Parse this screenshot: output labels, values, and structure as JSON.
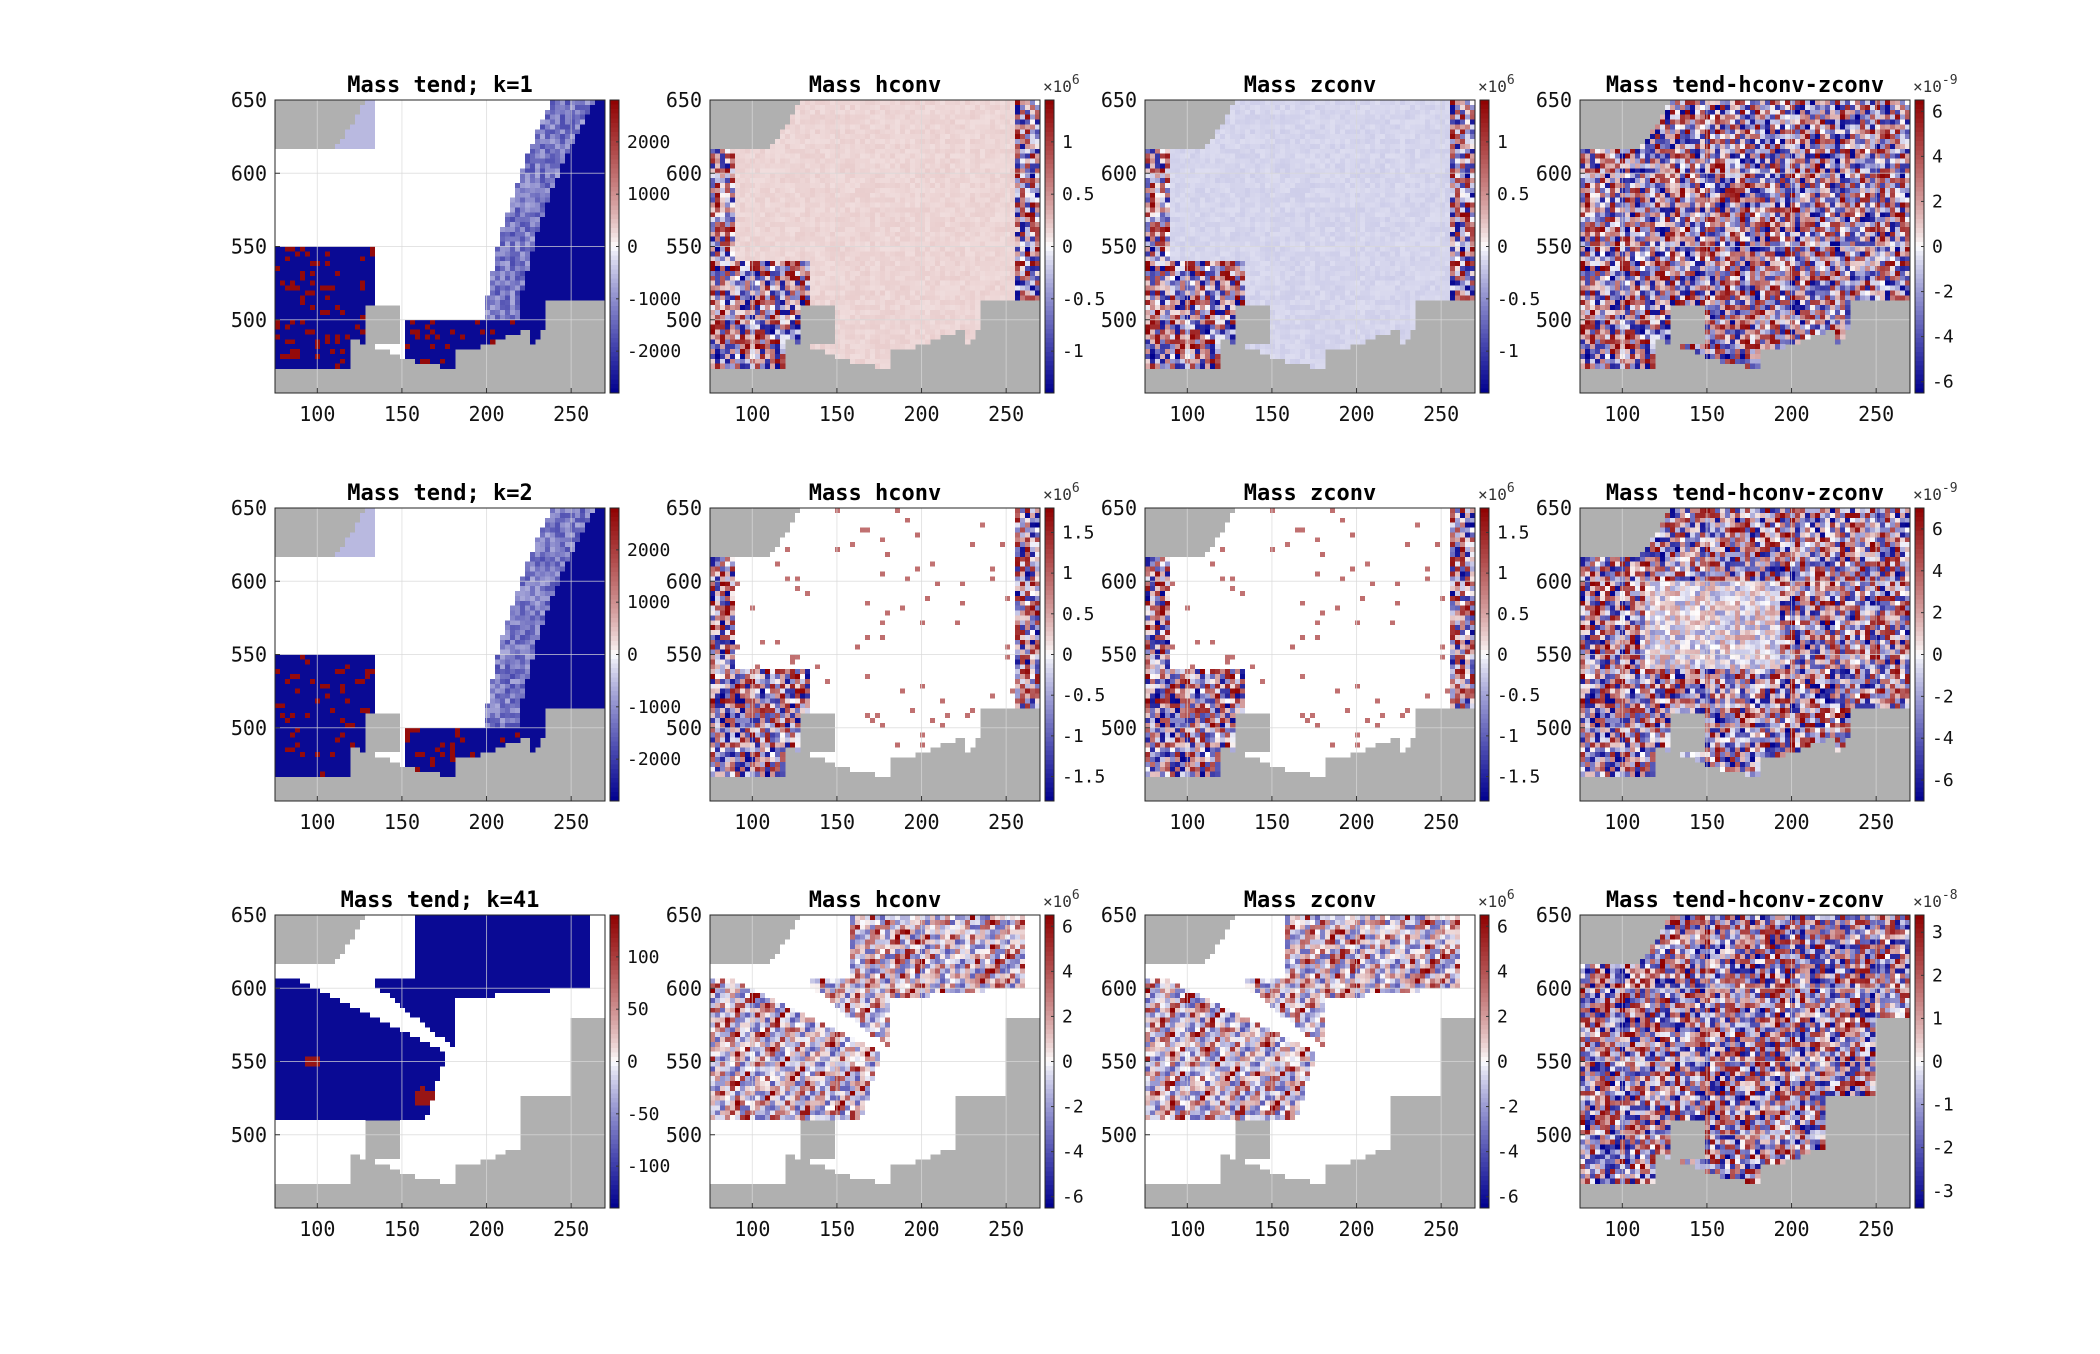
{
  "chart_data": [
    {
      "type": "heatmap",
      "title": "Mass tend; k=1",
      "field": "tend",
      "layer": 1,
      "xlim": [
        75,
        270
      ],
      "ylim": [
        450,
        650
      ],
      "xticks": [
        "100",
        "150",
        "200",
        "250"
      ],
      "yticks": [
        "500",
        "550",
        "600",
        "650"
      ],
      "colorbar": {
        "ticks": [
          2000,
          1000,
          0,
          -1000,
          -2000
        ],
        "labels": [
          "2000",
          "1000",
          "0",
          "-1000",
          "-2000"
        ],
        "range": [
          -2800,
          2800
        ],
        "exponent": ""
      }
    },
    {
      "type": "heatmap",
      "title": "Mass hconv",
      "field": "hconv",
      "layer": 1,
      "xlim": [
        75,
        270
      ],
      "ylim": [
        450,
        650
      ],
      "xticks": [
        "100",
        "150",
        "200",
        "250"
      ],
      "yticks": [
        "500",
        "550",
        "600",
        "650"
      ],
      "colorbar": {
        "ticks": [
          1,
          0.5,
          0,
          -0.5,
          -1
        ],
        "labels": [
          "1",
          "0.5",
          "0",
          "-0.5",
          "-1"
        ],
        "range": [
          -1.4,
          1.4
        ],
        "exponent": "6"
      }
    },
    {
      "type": "heatmap",
      "title": "Mass zconv",
      "field": "zconv",
      "layer": 1,
      "xlim": [
        75,
        270
      ],
      "ylim": [
        450,
        650
      ],
      "xticks": [
        "100",
        "150",
        "200",
        "250"
      ],
      "yticks": [
        "500",
        "550",
        "600",
        "650"
      ],
      "colorbar": {
        "ticks": [
          1,
          0.5,
          0,
          -0.5,
          -1
        ],
        "labels": [
          "1",
          "0.5",
          "0",
          "-0.5",
          "-1"
        ],
        "range": [
          -1.4,
          1.4
        ],
        "exponent": "6"
      }
    },
    {
      "type": "heatmap",
      "title": "Mass tend-hconv-zconv",
      "field": "resid",
      "layer": 1,
      "xlim": [
        75,
        270
      ],
      "ylim": [
        450,
        650
      ],
      "xticks": [
        "100",
        "150",
        "200",
        "250"
      ],
      "yticks": [
        "500",
        "550",
        "600",
        "650"
      ],
      "colorbar": {
        "ticks": [
          6,
          4,
          2,
          0,
          -2,
          -4,
          -6
        ],
        "labels": [
          "6",
          "4",
          "2",
          "0",
          "-2",
          "-4",
          "-6"
        ],
        "range": [
          -6.5,
          6.5
        ],
        "exponent": "-9"
      }
    },
    {
      "type": "heatmap",
      "title": "Mass tend; k=2",
      "field": "tend",
      "layer": 2,
      "xlim": [
        75,
        270
      ],
      "ylim": [
        450,
        650
      ],
      "xticks": [
        "100",
        "150",
        "200",
        "250"
      ],
      "yticks": [
        "500",
        "550",
        "600",
        "650"
      ],
      "colorbar": {
        "ticks": [
          2000,
          1000,
          0,
          -1000,
          -2000
        ],
        "labels": [
          "2000",
          "1000",
          "0",
          "-1000",
          "-2000"
        ],
        "range": [
          -2800,
          2800
        ],
        "exponent": ""
      }
    },
    {
      "type": "heatmap",
      "title": "Mass hconv",
      "field": "hconv",
      "layer": 2,
      "xlim": [
        75,
        270
      ],
      "ylim": [
        450,
        650
      ],
      "xticks": [
        "100",
        "150",
        "200",
        "250"
      ],
      "yticks": [
        "500",
        "550",
        "600",
        "650"
      ],
      "colorbar": {
        "ticks": [
          1.5,
          1,
          0.5,
          0,
          -0.5,
          -1,
          -1.5
        ],
        "labels": [
          "1.5",
          "1",
          "0.5",
          "0",
          "-0.5",
          "-1",
          "-1.5"
        ],
        "range": [
          -1.8,
          1.8
        ],
        "exponent": "6"
      }
    },
    {
      "type": "heatmap",
      "title": "Mass zconv",
      "field": "zconv",
      "layer": 2,
      "xlim": [
        75,
        270
      ],
      "ylim": [
        450,
        650
      ],
      "xticks": [
        "100",
        "150",
        "200",
        "250"
      ],
      "yticks": [
        "500",
        "550",
        "600",
        "650"
      ],
      "colorbar": {
        "ticks": [
          1.5,
          1,
          0.5,
          0,
          -0.5,
          -1,
          -1.5
        ],
        "labels": [
          "1.5",
          "1",
          "0.5",
          "0",
          "-0.5",
          "-1",
          "-1.5"
        ],
        "range": [
          -1.8,
          1.8
        ],
        "exponent": "6"
      }
    },
    {
      "type": "heatmap",
      "title": "Mass tend-hconv-zconv",
      "field": "resid",
      "layer": 2,
      "xlim": [
        75,
        270
      ],
      "ylim": [
        450,
        650
      ],
      "xticks": [
        "100",
        "150",
        "200",
        "250"
      ],
      "yticks": [
        "500",
        "550",
        "600",
        "650"
      ],
      "colorbar": {
        "ticks": [
          6,
          4,
          2,
          0,
          -2,
          -4,
          -6
        ],
        "labels": [
          "6",
          "4",
          "2",
          "0",
          "-2",
          "-4",
          "-6"
        ],
        "range": [
          -7,
          7
        ],
        "exponent": "-9"
      }
    },
    {
      "type": "heatmap",
      "title": "Mass tend; k=41",
      "field": "tend",
      "layer": 41,
      "xlim": [
        75,
        270
      ],
      "ylim": [
        450,
        650
      ],
      "xticks": [
        "100",
        "150",
        "200",
        "250"
      ],
      "yticks": [
        "500",
        "550",
        "600",
        "650"
      ],
      "colorbar": {
        "ticks": [
          100,
          50,
          0,
          -50,
          -100
        ],
        "labels": [
          "100",
          "50",
          "0",
          "-50",
          "-100"
        ],
        "range": [
          -140,
          140
        ],
        "exponent": ""
      }
    },
    {
      "type": "heatmap",
      "title": "Mass hconv",
      "field": "hconv",
      "layer": 41,
      "xlim": [
        75,
        270
      ],
      "ylim": [
        450,
        650
      ],
      "xticks": [
        "100",
        "150",
        "200",
        "250"
      ],
      "yticks": [
        "500",
        "550",
        "600",
        "650"
      ],
      "colorbar": {
        "ticks": [
          6,
          4,
          2,
          0,
          -2,
          -4,
          -6
        ],
        "labels": [
          "6",
          "4",
          "2",
          "0",
          "-2",
          "-4",
          "-6"
        ],
        "range": [
          -6.5,
          6.5
        ],
        "exponent": "6"
      }
    },
    {
      "type": "heatmap",
      "title": "Mass zconv",
      "field": "zconv",
      "layer": 41,
      "xlim": [
        75,
        270
      ],
      "ylim": [
        450,
        650
      ],
      "xticks": [
        "100",
        "150",
        "200",
        "250"
      ],
      "yticks": [
        "500",
        "550",
        "600",
        "650"
      ],
      "colorbar": {
        "ticks": [
          6,
          4,
          2,
          0,
          -2,
          -4,
          -6
        ],
        "labels": [
          "6",
          "4",
          "2",
          "0",
          "-2",
          "-4",
          "-6"
        ],
        "range": [
          -6.5,
          6.5
        ],
        "exponent": "6"
      }
    },
    {
      "type": "heatmap",
      "title": "Mass tend-hconv-zconv",
      "field": "resid",
      "layer": 41,
      "xlim": [
        75,
        270
      ],
      "ylim": [
        450,
        650
      ],
      "xticks": [
        "100",
        "150",
        "200",
        "250"
      ],
      "yticks": [
        "500",
        "550",
        "600",
        "650"
      ],
      "colorbar": {
        "ticks": [
          3,
          2,
          1,
          0,
          -1,
          -2,
          -3
        ],
        "labels": [
          "3",
          "2",
          "1",
          "0",
          "-1",
          "-2",
          "-3"
        ],
        "range": [
          -3.4,
          3.4
        ],
        "exponent": "-8"
      }
    }
  ],
  "colors": {
    "negative": "#00008f",
    "zero": "#ffffff",
    "positive": "#8f0000",
    "land": "#b0b0b0",
    "grid": "#d9d9d9"
  }
}
